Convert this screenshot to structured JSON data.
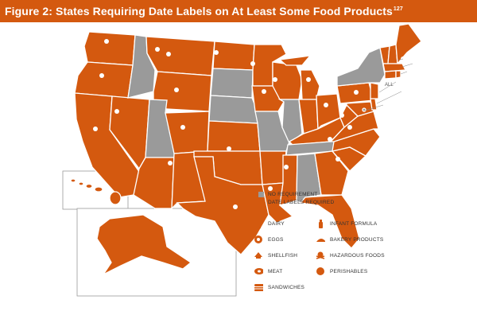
{
  "title": {
    "text": "Figure 2: States Requiring Date Labels on At Least Some Food Products",
    "superscript": "127"
  },
  "colors": {
    "required": "#d4590f",
    "no_requirement": "#9a9a9a",
    "background": "#ffffff"
  },
  "legend": {
    "no_requirement": "NO REQUIREMENT",
    "date_labels_required": "DATE LABELS REQUIRED"
  },
  "icon_legend": {
    "dairy": "DAIRY",
    "eggs": "EGGS",
    "shellfish": "SHELLFISH",
    "meat": "MEAT",
    "sandwiches": "SANDWICHES",
    "infant_formula": "INFANT FORMULA",
    "bakery_products": "BAKERY PRODUCTS",
    "hazardous_foods": "HAZARDOUS FOODS",
    "perishables": "PERISHABLES"
  },
  "map_annotations": {
    "all": "ALL"
  },
  "states_no_requirement": [
    "ID",
    "UT",
    "SD",
    "NE",
    "MO",
    "IL",
    "NY",
    "TN",
    "AL",
    "DC"
  ],
  "states_date_labels_required": [
    "WA",
    "OR",
    "CA",
    "NV",
    "MT",
    "WY",
    "CO",
    "AZ",
    "NM",
    "ND",
    "MN",
    "IA",
    "KS",
    "OK",
    "TX",
    "AR",
    "LA",
    "MS",
    "WI",
    "MI",
    "IN",
    "OH",
    "KY",
    "WV",
    "VA",
    "NC",
    "SC",
    "GA",
    "FL",
    "PA",
    "NJ",
    "DE",
    "MD",
    "CT",
    "RI",
    "MA",
    "VT",
    "NH",
    "ME",
    "AK",
    "HI"
  ]
}
